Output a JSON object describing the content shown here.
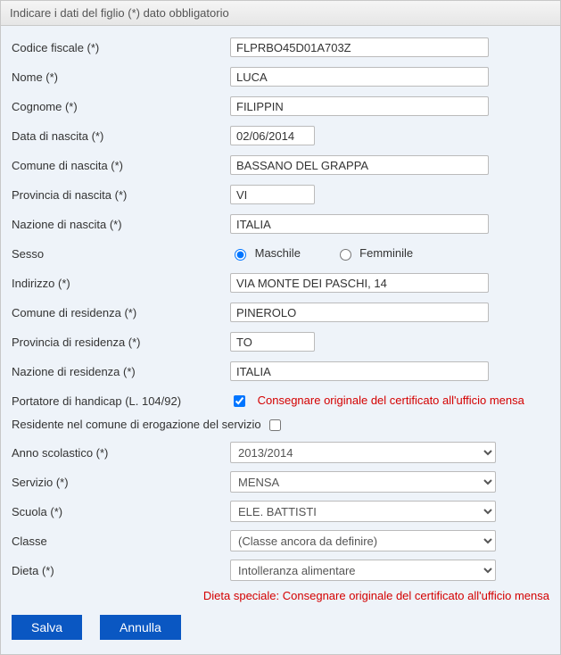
{
  "header": {
    "title": "Indicare i dati del figlio (*) dato obbligatorio"
  },
  "labels": {
    "codice_fiscale": "Codice fiscale (*)",
    "nome": "Nome (*)",
    "cognome": "Cognome (*)",
    "data_nascita": "Data di nascita (*)",
    "comune_nascita": "Comune di nascita (*)",
    "provincia_nascita": "Provincia di nascita (*)",
    "nazione_nascita": "Nazione di nascita (*)",
    "sesso": "Sesso",
    "indirizzo": "Indirizzo (*)",
    "comune_residenza": "Comune di residenza (*)",
    "provincia_residenza": "Provincia di residenza (*)",
    "nazione_residenza": "Nazione di residenza (*)",
    "portatore_handicap": "Portatore di handicap (L. 104/92)",
    "residente_erogazione": "Residente nel comune di erogazione del servizio",
    "anno_scolastico": "Anno scolastico (*)",
    "servizio": "Servizio (*)",
    "scuola": "Scuola (*)",
    "classe": "Classe",
    "dieta": "Dieta (*)"
  },
  "values": {
    "codice_fiscale": "FLPRBO45D01A703Z",
    "nome": "LUCA",
    "cognome": "FILIPPIN",
    "data_nascita": "02/06/2014",
    "comune_nascita": "BASSANO DEL GRAPPA",
    "provincia_nascita": "VI",
    "nazione_nascita": "ITALIA",
    "indirizzo": "VIA MONTE DEI PASCHI, 14",
    "comune_residenza": "PINEROLO",
    "provincia_residenza": "TO",
    "nazione_residenza": "ITALIA"
  },
  "sesso": {
    "maschile": "Maschile",
    "femminile": "Femminile",
    "selected": "maschile"
  },
  "handicap": {
    "checked": true,
    "note": "Consegnare originale del certificato all'ufficio mensa"
  },
  "residente": {
    "checked": false
  },
  "selects": {
    "anno_scolastico": "2013/2014",
    "servizio": "MENSA",
    "scuola": "ELE. BATTISTI",
    "classe": "(Classe ancora da definire)",
    "dieta": "Intolleranza alimentare"
  },
  "dieta_note": "Dieta speciale: Consegnare originale del certificato all'ufficio mensa",
  "buttons": {
    "salva": "Salva",
    "annulla": "Annulla"
  },
  "colors": {
    "bg": "#eef3f9",
    "warn": "#d40000",
    "button": "#0a57c2"
  }
}
